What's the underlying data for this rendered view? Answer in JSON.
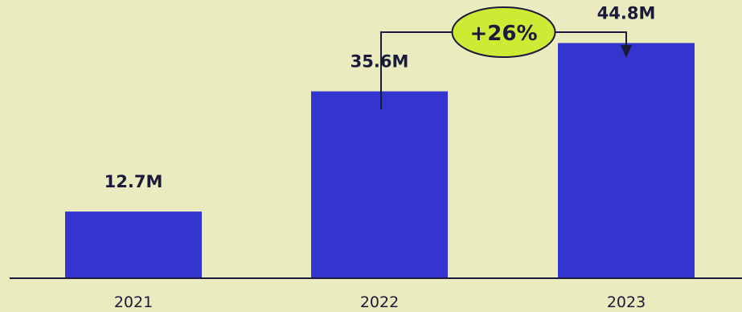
{
  "chart_data": {
    "type": "bar",
    "categories": [
      "2021",
      "2022",
      "2023"
    ],
    "values": [
      12.7,
      35.6,
      44.8
    ],
    "value_labels": [
      "12.7M",
      "35.6M",
      "44.8M"
    ],
    "title": "",
    "xlabel": "",
    "ylabel": "",
    "ylim": [
      0,
      53
    ],
    "grid": false,
    "legend": "none",
    "annotation": {
      "label": "+26%",
      "from_category": "2022",
      "to_category": "2023"
    },
    "colors": {
      "background": "#EAEBBE",
      "bar": "#3434CF",
      "text": "#1A1A3A",
      "badge_fill": "#CFEA34",
      "axis": "#1A1A3A"
    }
  }
}
